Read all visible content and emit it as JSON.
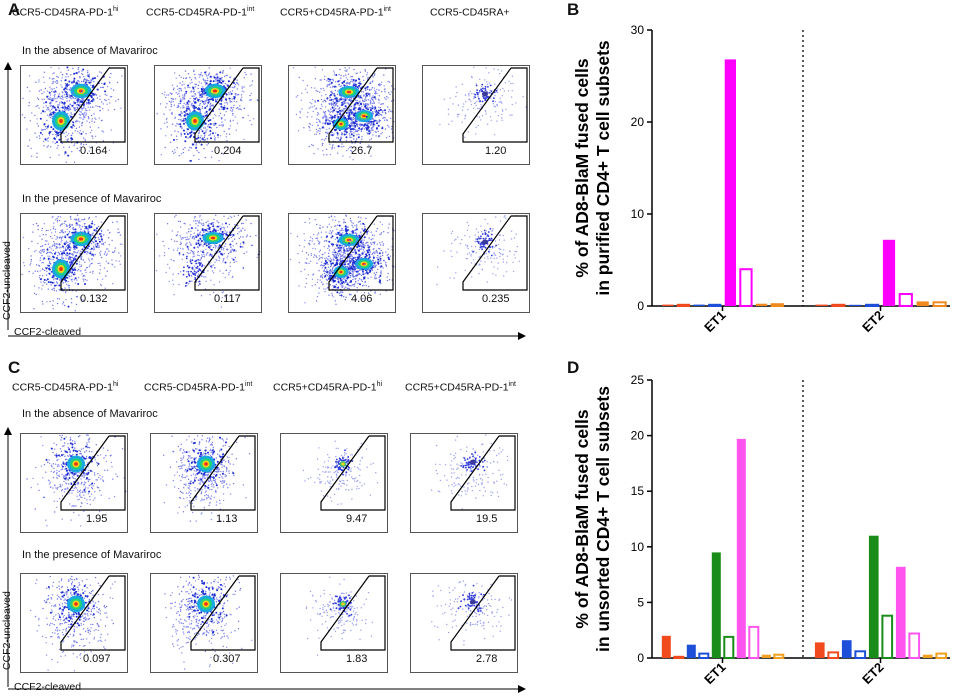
{
  "panels": {
    "A": "A",
    "B": "B",
    "C": "C",
    "D": "D"
  },
  "panel_A": {
    "headers": [
      {
        "base": "CCR5-CD45RA-PD-1",
        "sup": "hi"
      },
      {
        "base": "CCR5-CD45RA-PD-1",
        "sup": "int"
      },
      {
        "base": "CCR5+CD45RA-PD-1",
        "sup": "int"
      },
      {
        "base": "CCR5-CD45RA+",
        "sup": ""
      }
    ],
    "absence_label": "In the absence of Mavariroc",
    "presence_label": "In the presence of Mavariroc",
    "absence_values": [
      "0.164",
      "0.204",
      "26.7",
      "1.20"
    ],
    "presence_values": [
      "0.132",
      "0.117",
      "4.06",
      "0.235"
    ],
    "y_axis_label": "CCF2-uncleaved",
    "x_axis_label": "CCF2-cleaved"
  },
  "panel_C": {
    "headers": [
      {
        "base": "CCR5-CD45RA-PD-1",
        "sup": "hi"
      },
      {
        "base": "CCR5-CD45RA-PD-1",
        "sup": "int"
      },
      {
        "base": "CCR5+CD45RA-PD-1",
        "sup": "hi"
      },
      {
        "base": "CCR5+CD45RA-PD-1",
        "sup": "int"
      }
    ],
    "absence_label": "In the absence of Mavariroc",
    "presence_label": "In the presence of Mavariroc",
    "absence_values": [
      "1.95",
      "1.13",
      "9.47",
      "19.5"
    ],
    "presence_values": [
      "0.097",
      "0.307",
      "1.83",
      "2.78"
    ],
    "y_axis_label": "CCF2-uncleaved",
    "x_axis_label": "CCF2-cleaved"
  },
  "chart_data": [
    {
      "id": "B",
      "type": "bar",
      "ylabel_line1": "% of AD8-BlaM fused cells",
      "ylabel_line2": "in purified CD4+ T cell subsets",
      "categories": [
        "ET1",
        "ET2"
      ],
      "ylim": [
        0,
        30
      ],
      "yticks": [
        "0",
        "10",
        "20",
        "30"
      ],
      "bars": [
        {
          "group": "ET1",
          "color": "#f04a1e",
          "filled": true,
          "value": 0.15
        },
        {
          "group": "ET1",
          "color": "#f04a1e",
          "filled": false,
          "value": 0.1
        },
        {
          "group": "ET1",
          "color": "#1e4fd8",
          "filled": true,
          "value": 0.15
        },
        {
          "group": "ET1",
          "color": "#1e4fd8",
          "filled": false,
          "value": 0.1
        },
        {
          "group": "ET1",
          "color": "#ff00ff",
          "filled": true,
          "value": 26.8
        },
        {
          "group": "ET1",
          "color": "#ff00ff",
          "filled": false,
          "value": 4.0
        },
        {
          "group": "ET1",
          "color": "#f08a1e",
          "filled": true,
          "value": 0.25
        },
        {
          "group": "ET1",
          "color": "#f08a1e",
          "filled": false,
          "value": 0.2
        },
        {
          "group": "ET2",
          "color": "#f04a1e",
          "filled": true,
          "value": 0.15
        },
        {
          "group": "ET2",
          "color": "#f04a1e",
          "filled": false,
          "value": 0.1
        },
        {
          "group": "ET2",
          "color": "#1e4fd8",
          "filled": true,
          "value": 0.1
        },
        {
          "group": "ET2",
          "color": "#1e4fd8",
          "filled": false,
          "value": 0.1
        },
        {
          "group": "ET2",
          "color": "#ff00ff",
          "filled": true,
          "value": 7.2
        },
        {
          "group": "ET2",
          "color": "#ff00ff",
          "filled": false,
          "value": 1.3
        },
        {
          "group": "ET2",
          "color": "#f08a1e",
          "filled": true,
          "value": 0.5
        },
        {
          "group": "ET2",
          "color": "#f08a1e",
          "filled": false,
          "value": 0.4
        }
      ]
    },
    {
      "id": "D",
      "type": "bar",
      "ylabel_line1": "% of AD8-BlaM fused cells",
      "ylabel_line2": "in unsorted CD4+ T cell subsets",
      "categories": [
        "ET1",
        "ET2"
      ],
      "ylim": [
        0,
        25
      ],
      "yticks": [
        "0",
        "5",
        "10",
        "15",
        "20",
        "25"
      ],
      "bars": [
        {
          "group": "ET1",
          "color": "#f04a1e",
          "filled": true,
          "value": 2.0
        },
        {
          "group": "ET1",
          "color": "#f04a1e",
          "filled": false,
          "value": 0.1
        },
        {
          "group": "ET1",
          "color": "#1e4fd8",
          "filled": true,
          "value": 1.2
        },
        {
          "group": "ET1",
          "color": "#1e4fd8",
          "filled": false,
          "value": 0.4
        },
        {
          "group": "ET1",
          "color": "#1a8c1a",
          "filled": true,
          "value": 9.5
        },
        {
          "group": "ET1",
          "color": "#1a8c1a",
          "filled": false,
          "value": 1.9
        },
        {
          "group": "ET1",
          "color": "#ff55ee",
          "filled": true,
          "value": 19.7
        },
        {
          "group": "ET1",
          "color": "#ff55ee",
          "filled": false,
          "value": 2.8
        },
        {
          "group": "ET1",
          "color": "#f0a01e",
          "filled": true,
          "value": 0.3
        },
        {
          "group": "ET1",
          "color": "#f0a01e",
          "filled": false,
          "value": 0.3
        },
        {
          "group": "ET2",
          "color": "#f04a1e",
          "filled": true,
          "value": 1.4
        },
        {
          "group": "ET2",
          "color": "#f04a1e",
          "filled": false,
          "value": 0.5
        },
        {
          "group": "ET2",
          "color": "#1e4fd8",
          "filled": true,
          "value": 1.6
        },
        {
          "group": "ET2",
          "color": "#1e4fd8",
          "filled": false,
          "value": 0.6
        },
        {
          "group": "ET2",
          "color": "#1a8c1a",
          "filled": true,
          "value": 11.0
        },
        {
          "group": "ET2",
          "color": "#1a8c1a",
          "filled": false,
          "value": 3.8
        },
        {
          "group": "ET2",
          "color": "#ff55ee",
          "filled": true,
          "value": 8.2
        },
        {
          "group": "ET2",
          "color": "#ff55ee",
          "filled": false,
          "value": 2.2
        },
        {
          "group": "ET2",
          "color": "#f0a01e",
          "filled": true,
          "value": 0.3
        },
        {
          "group": "ET2",
          "color": "#f0a01e",
          "filled": false,
          "value": 0.4
        }
      ]
    }
  ]
}
